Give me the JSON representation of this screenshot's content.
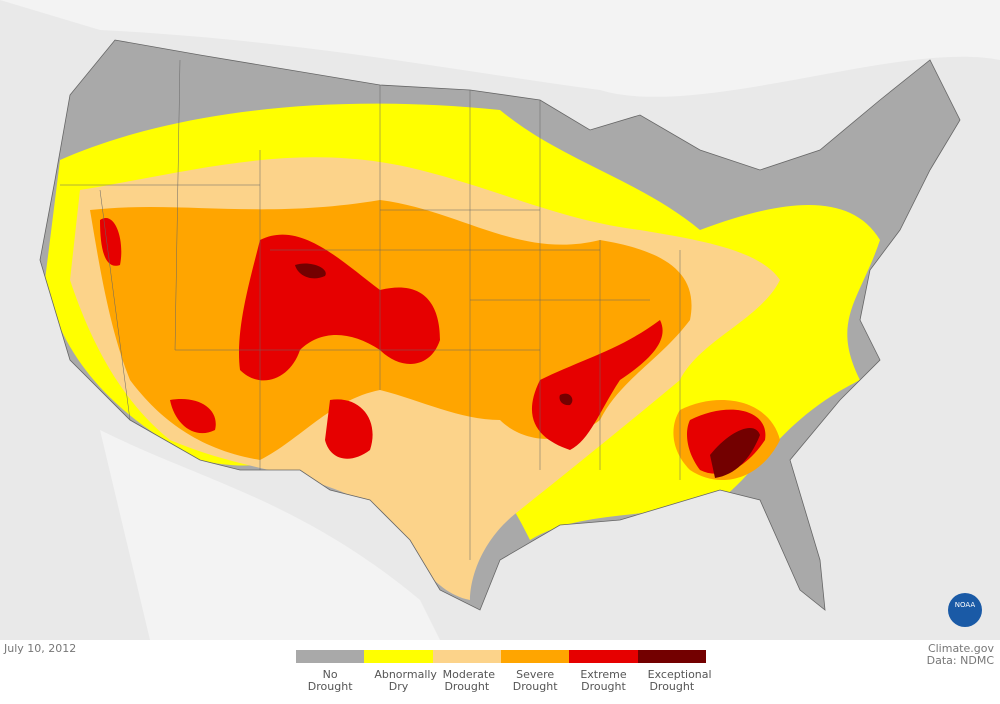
{
  "map": {
    "date": "July 10, 2012",
    "credit": "Climate.gov",
    "source": "Data: NDMC",
    "logo": "NOAA"
  },
  "legend": [
    {
      "label": "No Drought",
      "color": "#a9a9a9"
    },
    {
      "label": "Abnormally Dry",
      "color": "#ffff00"
    },
    {
      "label": "Moderate Drought",
      "color": "#fcd38a"
    },
    {
      "label": "Severe Drought",
      "color": "#ffa500"
    },
    {
      "label": "Extreme Drought",
      "color": "#e60000"
    },
    {
      "label": "Exceptional Drought",
      "color": "#730000"
    }
  ]
}
